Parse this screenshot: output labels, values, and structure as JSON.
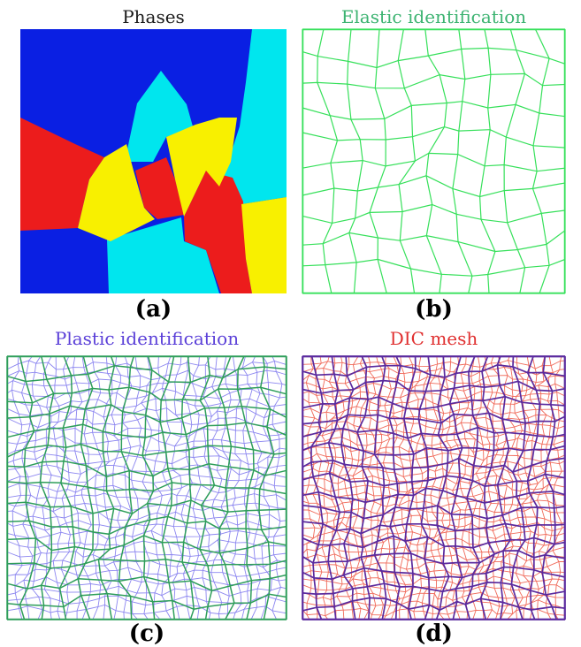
{
  "figure": {
    "panels": [
      {
        "id": "a",
        "title": "Phases",
        "label": "(a)",
        "colors": {
          "title": "#1a1a1a",
          "blue": "#0a1fe3",
          "cyan": "#00e6ee",
          "red": "#ec1c1c",
          "yellow": "#f8f000"
        }
      },
      {
        "id": "b",
        "title": "Elastic identification",
        "label": "(b)",
        "colors": {
          "title": "#3cb371",
          "mesh": "#36e05a"
        }
      },
      {
        "id": "c",
        "title": "Plastic identification",
        "label": "(c)",
        "colors": {
          "title": "#5a3fd8",
          "coarse": "#2e9e5a",
          "fine": "#8c86f0"
        }
      },
      {
        "id": "d",
        "title": "DIC mesh",
        "label": "(d)",
        "colors": {
          "title": "#e03030",
          "coarse": "#5a2a9e",
          "fine": "#f06a5a"
        }
      }
    ]
  }
}
